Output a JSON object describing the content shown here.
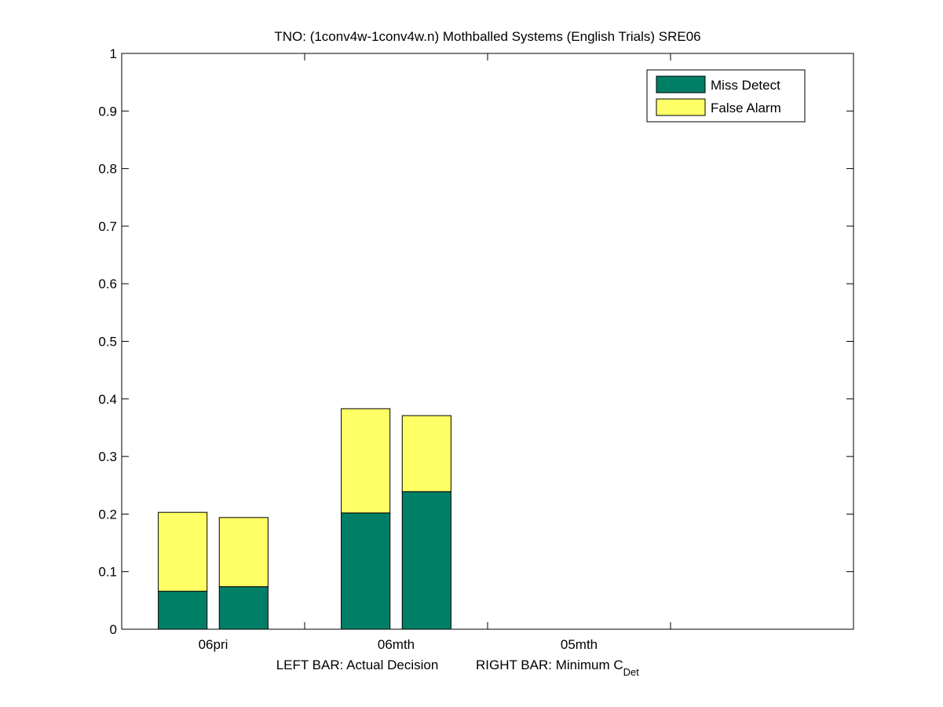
{
  "chart_data": {
    "type": "bar",
    "stacked": true,
    "title": "TNO: (1conv4w-1conv4w.n) Mothballed Systems (English Trials) SRE06",
    "xlabel": {
      "left": "LEFT BAR: Actual Decision",
      "right_main": "RIGHT BAR: Minimum C",
      "right_sub": "Det"
    },
    "ylabel": "",
    "ylim": [
      0,
      1
    ],
    "yticks": [
      "0",
      "0.1",
      "0.2",
      "0.3",
      "0.4",
      "0.5",
      "0.6",
      "0.7",
      "0.8",
      "0.9",
      "1"
    ],
    "categories": [
      "06pri",
      "06mth",
      "05mth"
    ],
    "bar_roles": [
      "Actual Decision",
      "Minimum CDet"
    ],
    "series": [
      {
        "name": "Miss Detect",
        "color": "#007f66",
        "values": [
          [
            0.066,
            0.074
          ],
          [
            0.202,
            0.239
          ],
          [
            null,
            null
          ]
        ]
      },
      {
        "name": "False Alarm",
        "color": "#ffff66",
        "values": [
          [
            0.137,
            0.12
          ],
          [
            0.181,
            0.132
          ],
          [
            null,
            null
          ]
        ]
      }
    ],
    "legend_position": "top-right",
    "grid": false
  }
}
